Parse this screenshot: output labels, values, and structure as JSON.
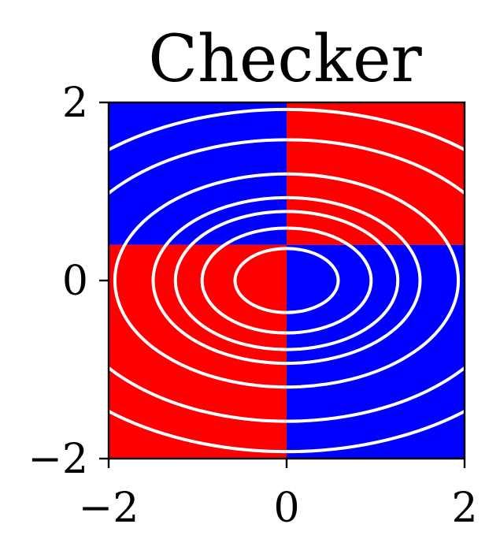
{
  "chart_data": {
    "type": "heatmap",
    "title": "Checker",
    "xlabel": "",
    "ylabel": "",
    "xlim": [
      -2,
      2
    ],
    "ylim": [
      -2,
      2
    ],
    "x_ticks": [
      -2,
      0,
      2
    ],
    "y_ticks": [
      -2,
      0,
      2
    ],
    "x_tick_labels": [
      "−2",
      "0",
      "2"
    ],
    "y_tick_labels": [
      "−2",
      "0",
      "2"
    ],
    "grid": false,
    "regions": [
      {
        "quadrant": "upper-left",
        "x": [
          -2,
          0
        ],
        "y": [
          0.4,
          2
        ],
        "color": "#0000ff"
      },
      {
        "quadrant": "upper-right",
        "x": [
          0,
          2
        ],
        "y": [
          0.4,
          2
        ],
        "color": "#ff0000"
      },
      {
        "quadrant": "lower-left",
        "x": [
          -2,
          0
        ],
        "y": [
          -2,
          0.4
        ],
        "color": "#ff0000"
      },
      {
        "quadrant": "lower-right",
        "x": [
          0,
          2
        ],
        "y": [
          -2,
          0.4
        ],
        "color": "#0000ff"
      }
    ],
    "contours": {
      "center": [
        0,
        0
      ],
      "aspect_y_over_x": 0.62,
      "radii_x": [
        0.58,
        0.95,
        1.25,
        1.5,
        1.93,
        2.55,
        3.1
      ],
      "color": "#ffffff"
    }
  }
}
